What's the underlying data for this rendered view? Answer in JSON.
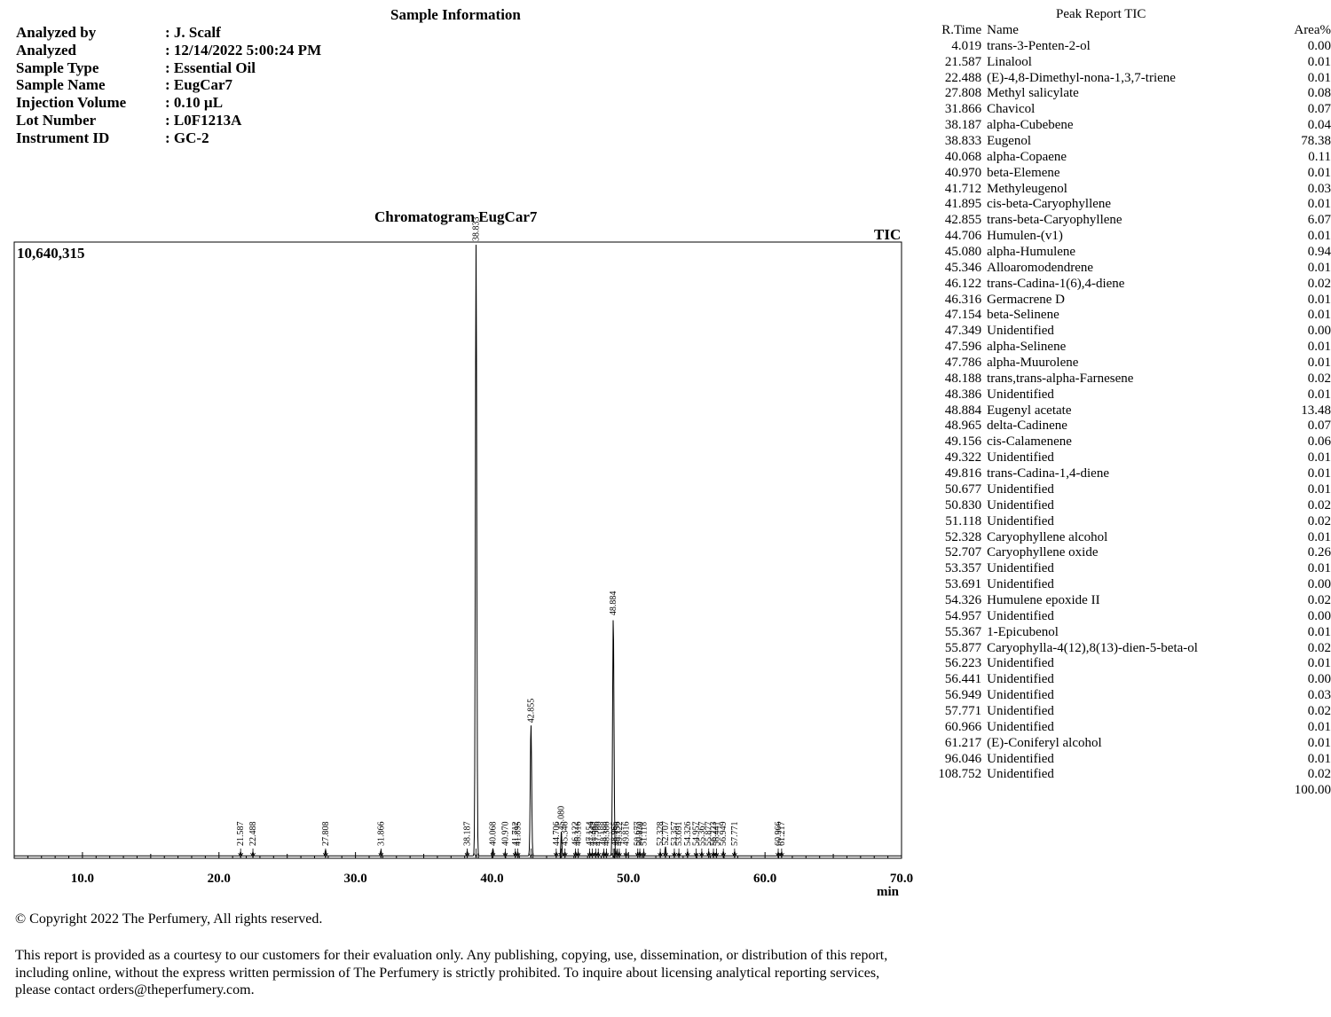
{
  "sample_info": {
    "title": "Sample Information",
    "rows": [
      {
        "key": "Analyzed by",
        "value": ": J. Scalf"
      },
      {
        "key": "Analyzed",
        "value": ": 12/14/2022 5:00:24 PM"
      },
      {
        "key": "Sample Type",
        "value": ": Essential Oil"
      },
      {
        "key": "Sample Name",
        "value": ": EugCar7"
      },
      {
        "key": "Injection Volume",
        "value": ": 0.10 µL"
      },
      {
        "key": "Lot Number",
        "value": ": L0F1213A"
      },
      {
        "key": "Instrument ID",
        "value": ": GC-2"
      }
    ]
  },
  "chart_data": {
    "type": "line",
    "title": "Chromatogram EugCar7",
    "signal_label": "TIC",
    "y_max_label": "10,640,315",
    "xlabel": "min",
    "xlim": [
      5.0,
      70.0
    ],
    "x_ticks": [
      "10.0",
      "20.0",
      "30.0",
      "40.0",
      "50.0",
      "60.0",
      "70.0"
    ],
    "ylim": [
      0,
      10640315
    ],
    "grid": false,
    "peaks": [
      {
        "rt": 21.587,
        "area_pct": 0.01,
        "height_frac": 0.006
      },
      {
        "rt": 22.488,
        "area_pct": 0.01,
        "height_frac": 0.006
      },
      {
        "rt": 27.808,
        "area_pct": 0.08,
        "height_frac": 0.01
      },
      {
        "rt": 31.866,
        "area_pct": 0.07,
        "height_frac": 0.009
      },
      {
        "rt": 38.187,
        "area_pct": 0.04,
        "height_frac": 0.008
      },
      {
        "rt": 38.833,
        "area_pct": 78.38,
        "height_frac": 1.0
      },
      {
        "rt": 40.068,
        "area_pct": 0.11,
        "height_frac": 0.012
      },
      {
        "rt": 40.97,
        "area_pct": 0.01,
        "height_frac": 0.006
      },
      {
        "rt": 41.712,
        "area_pct": 0.03,
        "height_frac": 0.007
      },
      {
        "rt": 41.895,
        "area_pct": 0.01,
        "height_frac": 0.006
      },
      {
        "rt": 42.855,
        "area_pct": 6.07,
        "height_frac": 0.215
      },
      {
        "rt": 44.706,
        "area_pct": 0.01,
        "height_frac": 0.006
      },
      {
        "rt": 45.08,
        "area_pct": 0.94,
        "height_frac": 0.04
      },
      {
        "rt": 45.346,
        "area_pct": 0.01,
        "height_frac": 0.006
      },
      {
        "rt": 46.122,
        "area_pct": 0.02,
        "height_frac": 0.007
      },
      {
        "rt": 46.316,
        "area_pct": 0.01,
        "height_frac": 0.006
      },
      {
        "rt": 47.154,
        "area_pct": 0.01,
        "height_frac": 0.006
      },
      {
        "rt": 47.349,
        "area_pct": 0.0,
        "height_frac": 0.005
      },
      {
        "rt": 47.596,
        "area_pct": 0.01,
        "height_frac": 0.006
      },
      {
        "rt": 47.786,
        "area_pct": 0.01,
        "height_frac": 0.006
      },
      {
        "rt": 48.188,
        "area_pct": 0.02,
        "height_frac": 0.007
      },
      {
        "rt": 48.386,
        "area_pct": 0.01,
        "height_frac": 0.006
      },
      {
        "rt": 48.884,
        "area_pct": 13.48,
        "height_frac": 0.39
      },
      {
        "rt": 48.965,
        "area_pct": 0.07,
        "height_frac": 0.009
      },
      {
        "rt": 49.156,
        "area_pct": 0.06,
        "height_frac": 0.009
      },
      {
        "rt": 49.322,
        "area_pct": 0.01,
        "height_frac": 0.006
      },
      {
        "rt": 49.816,
        "area_pct": 0.01,
        "height_frac": 0.006
      },
      {
        "rt": 50.677,
        "area_pct": 0.01,
        "height_frac": 0.006
      },
      {
        "rt": 50.83,
        "area_pct": 0.02,
        "height_frac": 0.007
      },
      {
        "rt": 51.118,
        "area_pct": 0.02,
        "height_frac": 0.007
      },
      {
        "rt": 52.328,
        "area_pct": 0.01,
        "height_frac": 0.006
      },
      {
        "rt": 52.707,
        "area_pct": 0.26,
        "height_frac": 0.015
      },
      {
        "rt": 53.357,
        "area_pct": 0.01,
        "height_frac": 0.006
      },
      {
        "rt": 53.691,
        "area_pct": 0.0,
        "height_frac": 0.005
      },
      {
        "rt": 54.326,
        "area_pct": 0.02,
        "height_frac": 0.007
      },
      {
        "rt": 54.957,
        "area_pct": 0.0,
        "height_frac": 0.005
      },
      {
        "rt": 55.367,
        "area_pct": 0.01,
        "height_frac": 0.006
      },
      {
        "rt": 55.877,
        "area_pct": 0.02,
        "height_frac": 0.007
      },
      {
        "rt": 56.223,
        "area_pct": 0.01,
        "height_frac": 0.006
      },
      {
        "rt": 56.441,
        "area_pct": 0.0,
        "height_frac": 0.005
      },
      {
        "rt": 56.949,
        "area_pct": 0.03,
        "height_frac": 0.007
      },
      {
        "rt": 57.771,
        "area_pct": 0.02,
        "height_frac": 0.007
      },
      {
        "rt": 60.966,
        "area_pct": 0.01,
        "height_frac": 0.006
      },
      {
        "rt": 61.217,
        "area_pct": 0.01,
        "height_frac": 0.006
      }
    ]
  },
  "peak_report": {
    "title": "Peak Report TIC",
    "headers": {
      "rtime": "R.Time",
      "name": "Name",
      "area": "Area%"
    },
    "rows": [
      {
        "rtime": "4.019",
        "name": "trans-3-Penten-2-ol",
        "area": "0.00"
      },
      {
        "rtime": "21.587",
        "name": "Linalool",
        "area": "0.01"
      },
      {
        "rtime": "22.488",
        "name": "(E)-4,8-Dimethyl-nona-1,3,7-triene",
        "area": "0.01"
      },
      {
        "rtime": "27.808",
        "name": "Methyl salicylate",
        "area": "0.08"
      },
      {
        "rtime": "31.866",
        "name": "Chavicol",
        "area": "0.07"
      },
      {
        "rtime": "38.187",
        "name": "alpha-Cubebene",
        "area": "0.04"
      },
      {
        "rtime": "38.833",
        "name": "Eugenol",
        "area": "78.38"
      },
      {
        "rtime": "40.068",
        "name": "alpha-Copaene",
        "area": "0.11"
      },
      {
        "rtime": "40.970",
        "name": "beta-Elemene",
        "area": "0.01"
      },
      {
        "rtime": "41.712",
        "name": "Methyleugenol",
        "area": "0.03"
      },
      {
        "rtime": "41.895",
        "name": "cis-beta-Caryophyllene",
        "area": "0.01"
      },
      {
        "rtime": "42.855",
        "name": "trans-beta-Caryophyllene",
        "area": "6.07"
      },
      {
        "rtime": "44.706",
        "name": "Humulen-(v1)",
        "area": "0.01"
      },
      {
        "rtime": "45.080",
        "name": "alpha-Humulene",
        "area": "0.94"
      },
      {
        "rtime": "45.346",
        "name": "Alloaromodendrene",
        "area": "0.01"
      },
      {
        "rtime": "46.122",
        "name": "trans-Cadina-1(6),4-diene",
        "area": "0.02"
      },
      {
        "rtime": "46.316",
        "name": "Germacrene D",
        "area": "0.01"
      },
      {
        "rtime": "47.154",
        "name": "beta-Selinene",
        "area": "0.01"
      },
      {
        "rtime": "47.349",
        "name": "Unidentified",
        "area": "0.00"
      },
      {
        "rtime": "47.596",
        "name": "alpha-Selinene",
        "area": "0.01"
      },
      {
        "rtime": "47.786",
        "name": "alpha-Muurolene",
        "area": "0.01"
      },
      {
        "rtime": "48.188",
        "name": "trans,trans-alpha-Farnesene",
        "area": "0.02"
      },
      {
        "rtime": "48.386",
        "name": "Unidentified",
        "area": "0.01"
      },
      {
        "rtime": "48.884",
        "name": "Eugenyl acetate",
        "area": "13.48"
      },
      {
        "rtime": "48.965",
        "name": "delta-Cadinene",
        "area": "0.07"
      },
      {
        "rtime": "49.156",
        "name": "cis-Calamenene",
        "area": "0.06"
      },
      {
        "rtime": "49.322",
        "name": "Unidentified",
        "area": "0.01"
      },
      {
        "rtime": "49.816",
        "name": "trans-Cadina-1,4-diene",
        "area": "0.01"
      },
      {
        "rtime": "50.677",
        "name": "Unidentified",
        "area": "0.01"
      },
      {
        "rtime": "50.830",
        "name": "Unidentified",
        "area": "0.02"
      },
      {
        "rtime": "51.118",
        "name": "Unidentified",
        "area": "0.02"
      },
      {
        "rtime": "52.328",
        "name": "Caryophyllene alcohol",
        "area": "0.01"
      },
      {
        "rtime": "52.707",
        "name": "Caryophyllene oxide",
        "area": "0.26"
      },
      {
        "rtime": "53.357",
        "name": "Unidentified",
        "area": "0.01"
      },
      {
        "rtime": "53.691",
        "name": "Unidentified",
        "area": "0.00"
      },
      {
        "rtime": "54.326",
        "name": "Humulene epoxide II",
        "area": "0.02"
      },
      {
        "rtime": "54.957",
        "name": "Unidentified",
        "area": "0.00"
      },
      {
        "rtime": "55.367",
        "name": "1-Epicubenol",
        "area": "0.01"
      },
      {
        "rtime": "55.877",
        "name": "Caryophylla-4(12),8(13)-dien-5-beta-ol",
        "area": "0.02"
      },
      {
        "rtime": "56.223",
        "name": "Unidentified",
        "area": "0.01"
      },
      {
        "rtime": "56.441",
        "name": "Unidentified",
        "area": "0.00"
      },
      {
        "rtime": "56.949",
        "name": "Unidentified",
        "area": "0.03"
      },
      {
        "rtime": "57.771",
        "name": "Unidentified",
        "area": "0.02"
      },
      {
        "rtime": "60.966",
        "name": "Unidentified",
        "area": "0.01"
      },
      {
        "rtime": "61.217",
        "name": "(E)-Coniferyl alcohol",
        "area": "0.01"
      },
      {
        "rtime": "96.046",
        "name": "Unidentified",
        "area": "0.01"
      },
      {
        "rtime": "108.752",
        "name": "Unidentified",
        "area": "0.02"
      }
    ],
    "total": "100.00"
  },
  "footer": {
    "copyright": "© Copyright 2022 The Perfumery, All rights reserved.",
    "disclaimer": "This report is provided as a courtesy to our customers for their evaluation only. Any publishing, copying, use, dissemination, or distribution of this report, including online, without the express written permission of The Perfumery is strictly prohibited. To inquire about licensing analytical reporting services, please contact orders@theperfumery.com."
  }
}
